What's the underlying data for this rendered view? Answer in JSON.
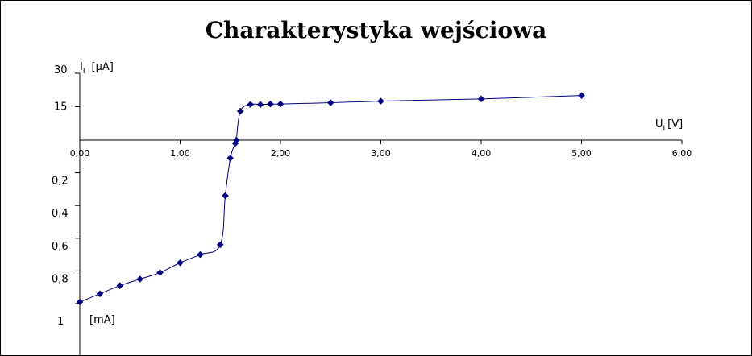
{
  "chart_data": {
    "type": "line",
    "title": "Charakterystyka wejściowa",
    "x_axis": {
      "label_main": "U",
      "label_sub": "I",
      "label_unit": "[V]",
      "range": [
        0,
        6
      ],
      "ticks": [
        {
          "value": 0,
          "label": "0,00"
        },
        {
          "value": 1,
          "label": "1,00"
        },
        {
          "value": 2,
          "label": "2,00"
        },
        {
          "value": 3,
          "label": "3,00"
        },
        {
          "value": 4,
          "label": "4,00"
        },
        {
          "value": 5,
          "label": "5,00"
        },
        {
          "value": 6,
          "label": "6,00"
        }
      ]
    },
    "y_axis_positive": {
      "label_main": "I",
      "label_sub": "I",
      "label_unit": "[µA]",
      "range": [
        0,
        30
      ],
      "ticks": [
        {
          "value": 30,
          "label": "30"
        },
        {
          "value": 15,
          "label": "15"
        }
      ]
    },
    "y_axis_negative": {
      "label_unit": "[mA]",
      "range": [
        0,
        1
      ],
      "ticks": [
        {
          "value": 0.2,
          "label": "0,2"
        },
        {
          "value": 0.4,
          "label": "0,4"
        },
        {
          "value": 0.6,
          "label": "0,6"
        },
        {
          "value": 0.8,
          "label": "0,8"
        },
        {
          "value": 1.0,
          "label": "1"
        }
      ]
    },
    "series": [
      {
        "color": "#00007f",
        "marker": "diamond",
        "points_below_axis_mA": [
          {
            "x": 0.0,
            "y": 0.99
          },
          {
            "x": 0.2,
            "y": 0.94
          },
          {
            "x": 0.4,
            "y": 0.89
          },
          {
            "x": 0.6,
            "y": 0.85
          },
          {
            "x": 0.8,
            "y": 0.81
          },
          {
            "x": 1.0,
            "y": 0.75
          },
          {
            "x": 1.2,
            "y": 0.7
          },
          {
            "x": 1.4,
            "y": 0.64
          },
          {
            "x": 1.45,
            "y": 0.34
          },
          {
            "x": 1.5,
            "y": 0.11
          },
          {
            "x": 1.55,
            "y": 0.02
          },
          {
            "x": 1.56,
            "y": 0.0
          }
        ],
        "points_above_axis_uA": [
          {
            "x": 1.56,
            "y": 0
          },
          {
            "x": 1.6,
            "y": 13
          },
          {
            "x": 1.7,
            "y": 16
          },
          {
            "x": 1.8,
            "y": 16
          },
          {
            "x": 1.9,
            "y": 16.2
          },
          {
            "x": 2.0,
            "y": 16.2
          },
          {
            "x": 2.5,
            "y": 16.8
          },
          {
            "x": 3.0,
            "y": 17.5
          },
          {
            "x": 4.0,
            "y": 18.5
          },
          {
            "x": 5.0,
            "y": 20
          }
        ]
      }
    ]
  }
}
